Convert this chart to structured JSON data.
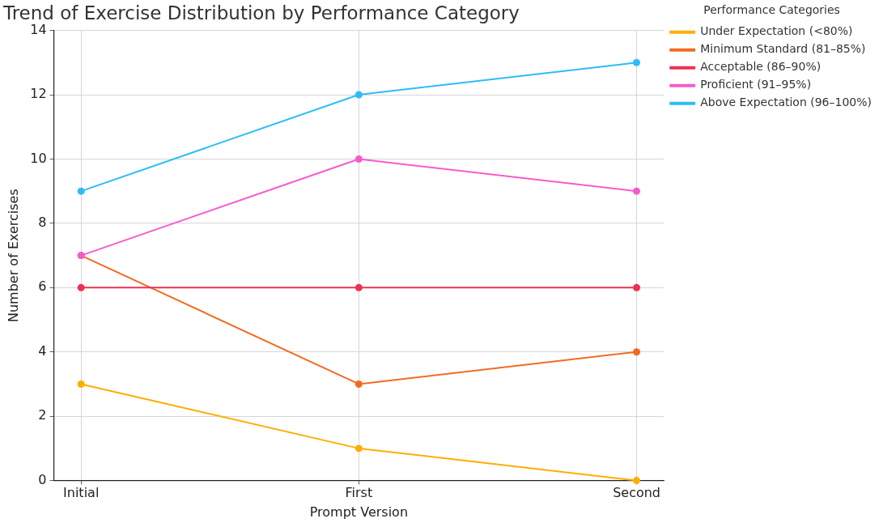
{
  "chart_data": {
    "type": "line",
    "title": "Trend of Exercise Distribution by Performance Category",
    "xlabel": "Prompt Version",
    "ylabel": "Number of Exercises",
    "legend_title": "Performance Categories",
    "categories": [
      "Initial",
      "First",
      "Second"
    ],
    "series": [
      {
        "name": "Under Expectation (<80%)",
        "color": "#ffad00",
        "values": [
          3,
          1,
          0
        ]
      },
      {
        "name": "Minimum Standard (81–85%)",
        "color": "#f26b21",
        "values": [
          7,
          3,
          4
        ]
      },
      {
        "name": "Acceptable (86–90%)",
        "color": "#ef3051",
        "values": [
          6,
          6,
          6
        ]
      },
      {
        "name": "Proficient (91–95%)",
        "color": "#f75bcb",
        "values": [
          7,
          10,
          9
        ]
      },
      {
        "name": "Above Expectation (96–100%)",
        "color": "#2cbdf7",
        "values": [
          9,
          12,
          13
        ]
      }
    ],
    "ylim": [
      0,
      14
    ],
    "yticks": [
      0,
      2,
      4,
      6,
      8,
      10,
      12,
      14
    ],
    "grid": true,
    "legend": "right",
    "marker": "circle",
    "line_style": "solid"
  }
}
